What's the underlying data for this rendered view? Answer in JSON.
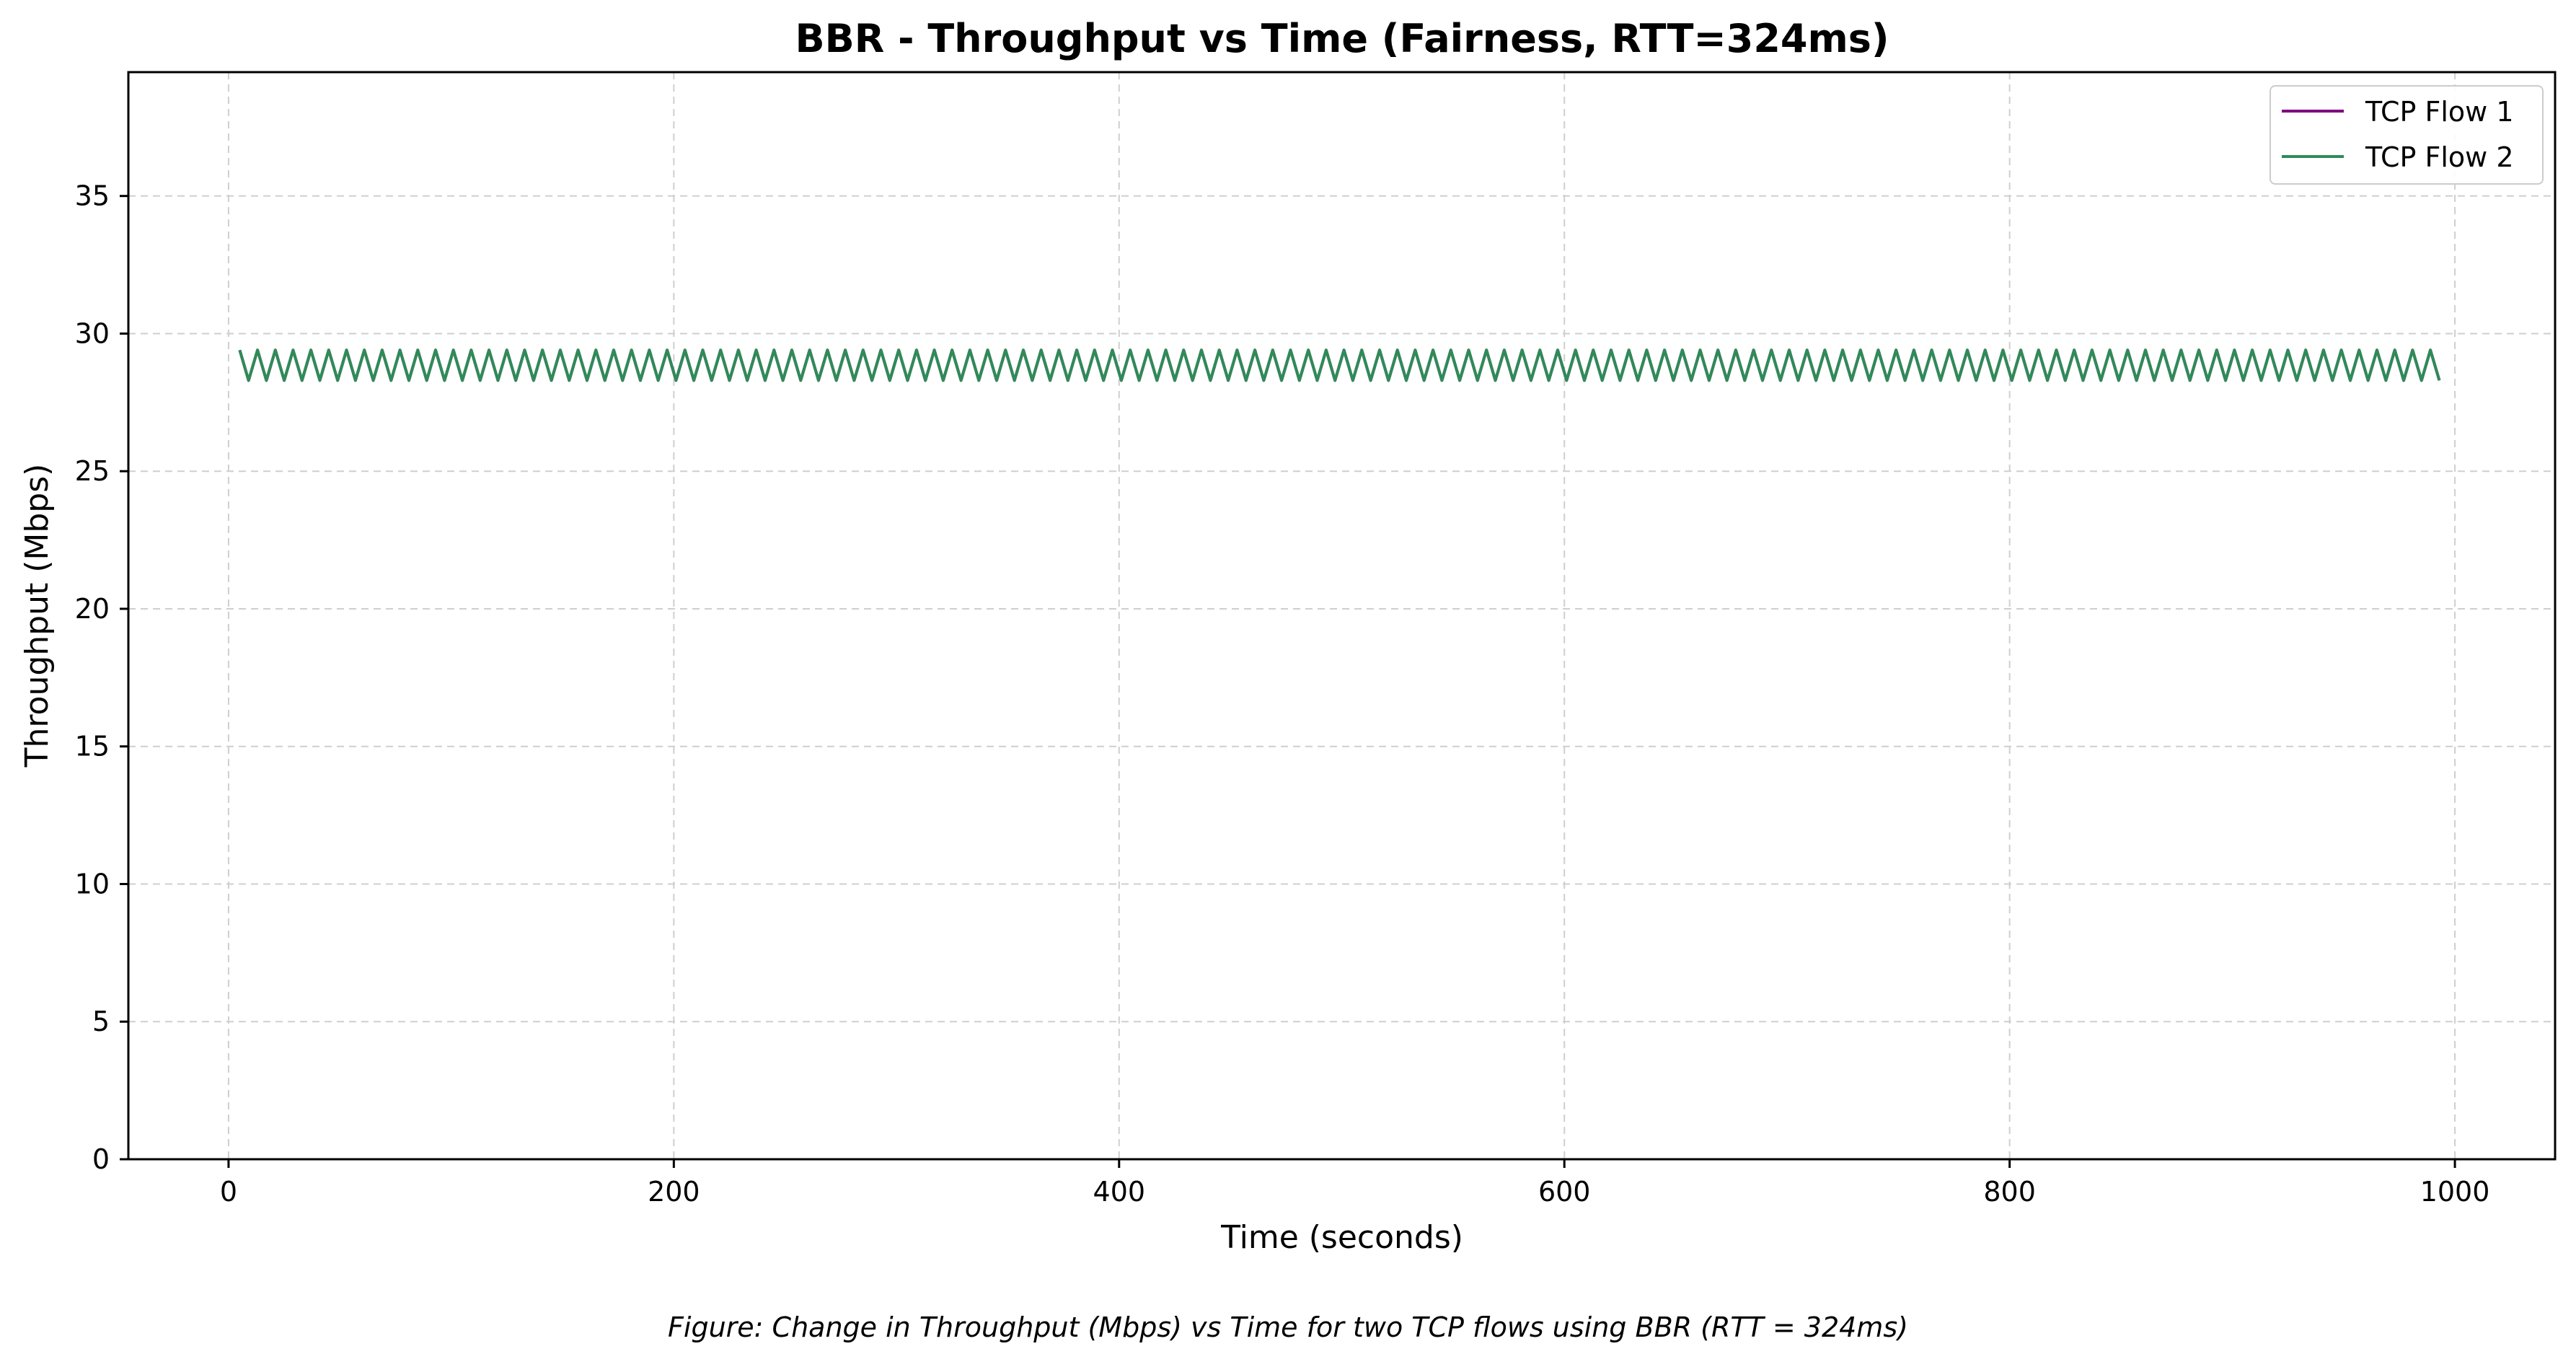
{
  "chart_data": {
    "type": "line",
    "title": "BBR - Throughput vs Time (Fairness, RTT=324ms)",
    "xlabel": "Time (seconds)",
    "ylabel": "Throughput (Mbps)",
    "caption": "Figure: Change in Throughput (Mbps) vs Time for two TCP flows using BBR (RTT = 324ms)",
    "xlim": [
      -45,
      1045
    ],
    "ylim": [
      0,
      39.5
    ],
    "xticks": [
      0,
      200,
      400,
      600,
      800,
      1000
    ],
    "yticks": [
      0,
      5,
      10,
      15,
      20,
      25,
      30,
      35
    ],
    "grid": true,
    "legend_position": "top-right",
    "series": [
      {
        "name": "TCP Flow 1",
        "color": "#800080",
        "start": 5,
        "end": 995,
        "step": 4,
        "pattern_period_seconds": 8,
        "high": 29.4,
        "low": 28.3
      },
      {
        "name": "TCP Flow 2",
        "color": "#2e8b57",
        "start": 5,
        "end": 995,
        "step": 4,
        "pattern_period_seconds": 8,
        "high": 29.4,
        "low": 28.3
      }
    ]
  }
}
